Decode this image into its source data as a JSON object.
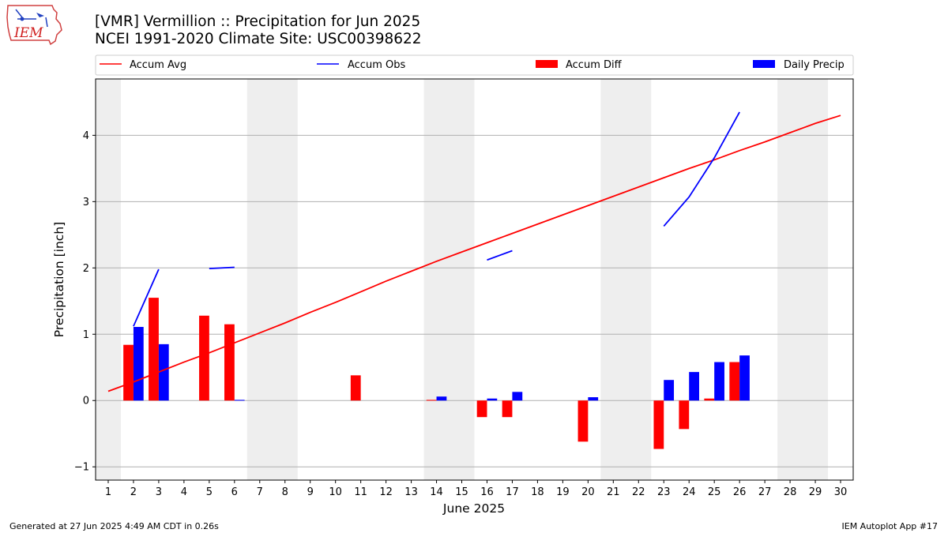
{
  "header": {
    "title_line1": "[VMR] Vermillion :: Precipitation for Jun 2025",
    "title_line2": "NCEI 1991-2020 Climate Site: USC00398622",
    "logo_text": "IEM"
  },
  "footer": {
    "generated": "Generated at 27 Jun 2025 4:49 AM CDT in 0.26s",
    "app": "IEM Autoplot App #17"
  },
  "chart_data": {
    "type": "bar",
    "xlabel": "June 2025",
    "ylabel": "Precipitation [inch]",
    "ylim": [
      -1.2,
      4.85
    ],
    "xlim": [
      0.5,
      30.5
    ],
    "yticks": [
      -1,
      0,
      1,
      2,
      3,
      4
    ],
    "ytick_labels": [
      "−1",
      "0",
      "1",
      "2",
      "3",
      "4"
    ],
    "xticks": [
      1,
      2,
      3,
      4,
      5,
      6,
      7,
      8,
      9,
      10,
      11,
      12,
      13,
      14,
      15,
      16,
      17,
      18,
      19,
      20,
      21,
      22,
      23,
      24,
      25,
      26,
      27,
      28,
      29,
      30
    ],
    "grid": "horizontal",
    "legend_position": "top",
    "weekend_shading": [
      [
        0.5,
        1.5
      ],
      [
        6.5,
        8.5
      ],
      [
        13.5,
        15.5
      ],
      [
        20.5,
        22.5
      ],
      [
        27.5,
        29.5
      ]
    ],
    "colors": {
      "avg": "#ff0000",
      "obs": "#0000ff",
      "diff": "#ff0000",
      "daily": "#0000ff",
      "shade": "#eeeeee"
    },
    "legend": [
      "Accum Avg",
      "Accum Obs",
      "Accum Diff",
      "Daily Precip"
    ],
    "accum_avg": {
      "name": "Accum Avg",
      "x": [
        1,
        2,
        3,
        4,
        5,
        6,
        7,
        8,
        9,
        10,
        11,
        12,
        13,
        14,
        15,
        16,
        17,
        18,
        19,
        20,
        21,
        22,
        23,
        24,
        25,
        26,
        27,
        28,
        29,
        30
      ],
      "values": [
        0.14,
        0.28,
        0.43,
        0.58,
        0.72,
        0.87,
        1.02,
        1.17,
        1.33,
        1.48,
        1.64,
        1.8,
        1.95,
        2.1,
        2.24,
        2.38,
        2.52,
        2.66,
        2.8,
        2.94,
        3.08,
        3.22,
        3.36,
        3.5,
        3.63,
        3.77,
        3.9,
        4.04,
        4.18,
        4.3
      ]
    },
    "accum_obs": {
      "name": "Accum Obs",
      "segments": [
        {
          "x": [
            2,
            3
          ],
          "values": [
            1.12,
            1.98
          ]
        },
        {
          "x": [
            5,
            6
          ],
          "values": [
            1.99,
            2.01
          ]
        },
        {
          "x": [
            16,
            17
          ],
          "values": [
            2.12,
            2.26
          ]
        },
        {
          "x": [
            23,
            24,
            25,
            26
          ],
          "values": [
            2.63,
            3.07,
            3.66,
            4.35
          ]
        }
      ]
    },
    "accum_diff": {
      "name": "Accum Diff",
      "x": [
        2,
        3,
        5,
        6,
        11,
        14,
        16,
        17,
        20,
        23,
        24,
        25,
        26
      ],
      "values": [
        0.84,
        1.55,
        1.28,
        1.15,
        0.38,
        0.01,
        -0.25,
        -0.25,
        -0.62,
        -0.73,
        -0.43,
        0.03,
        0.58
      ]
    },
    "daily_precip": {
      "name": "Daily Precip",
      "x": [
        2,
        3,
        6,
        14,
        16,
        17,
        20,
        23,
        24,
        25,
        26
      ],
      "values": [
        1.11,
        0.85,
        0.01,
        0.06,
        0.03,
        0.13,
        0.05,
        0.31,
        0.43,
        0.58,
        0.68
      ]
    }
  }
}
